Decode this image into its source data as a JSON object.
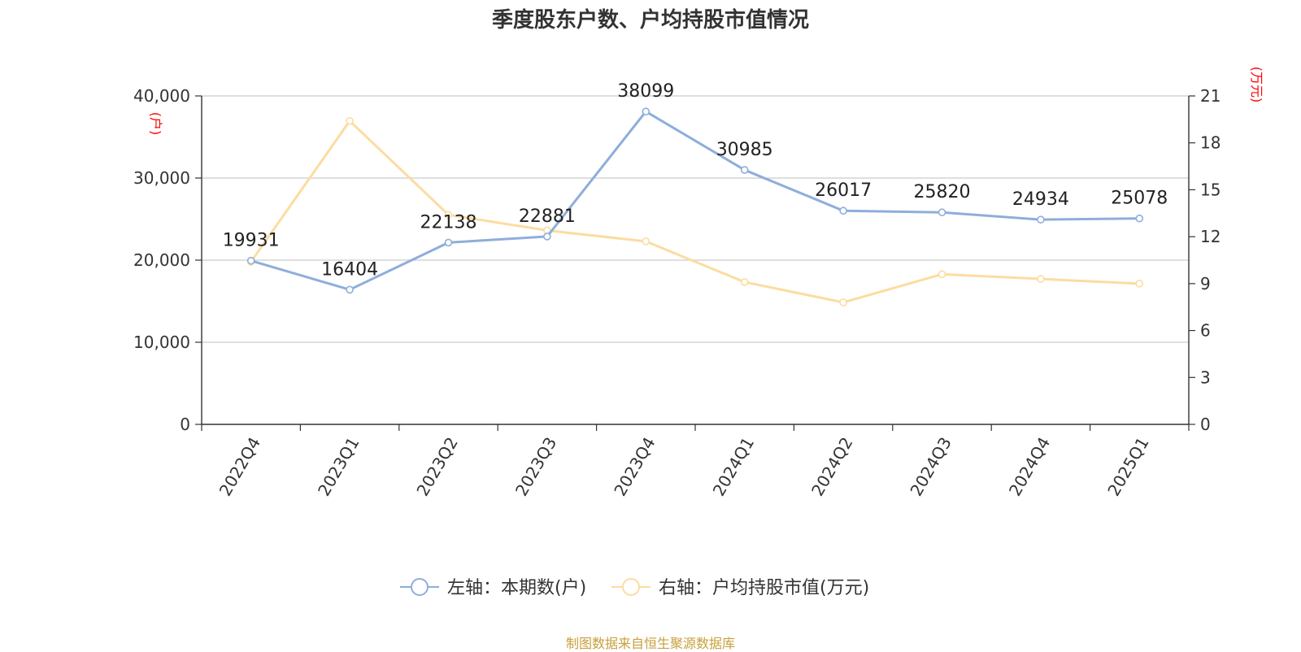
{
  "chart_data": {
    "type": "line",
    "title": "季度股东户数、户均持股市值情况",
    "categories": [
      "2022Q4",
      "2023Q1",
      "2023Q2",
      "2023Q3",
      "2023Q4",
      "2024Q1",
      "2024Q2",
      "2024Q3",
      "2024Q4",
      "2025Q1"
    ],
    "series": [
      {
        "name": "左轴：本期数(户)",
        "axis": "left",
        "color": "#8eaedb",
        "values": [
          19931,
          16404,
          22138,
          22881,
          38099,
          30985,
          26017,
          25820,
          24934,
          25078
        ],
        "labels": [
          "19931",
          "16404",
          "22138",
          "22881",
          "38099",
          "30985",
          "26017",
          "25820",
          "24934",
          "25078"
        ]
      },
      {
        "name": "右轴：户均持股市值(万元)",
        "axis": "right",
        "color": "#fcdca0",
        "values": [
          10.4,
          19.4,
          13.4,
          12.4,
          11.7,
          9.1,
          7.8,
          9.6,
          9.3,
          9.0
        ]
      }
    ],
    "left_axis": {
      "unit": "(户)",
      "ylim": [
        0,
        40000
      ],
      "ticks": [
        0,
        10000,
        20000,
        30000,
        40000
      ],
      "tick_labels": [
        "0",
        "10,000",
        "20,000",
        "30,000",
        "40,000"
      ]
    },
    "right_axis": {
      "unit": "(万元)",
      "ylim": [
        0,
        21
      ],
      "ticks": [
        0,
        3,
        6,
        9,
        12,
        15,
        18,
        21
      ],
      "tick_labels": [
        "0",
        "3",
        "6",
        "9",
        "12",
        "15",
        "18",
        "21"
      ]
    },
    "grid": true,
    "legend_position": "bottom",
    "source": "制图数据来自恒生聚源数据库"
  }
}
